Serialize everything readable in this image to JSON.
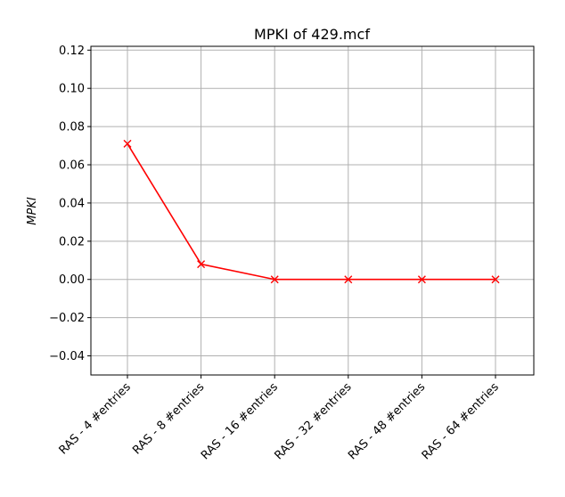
{
  "chart_data": {
    "type": "line",
    "title": "MPKI of 429.mcf",
    "xlabel": "",
    "ylabel": "MPKI",
    "categories": [
      "RAS - 4 #entries",
      "RAS - 8 #entries",
      "RAS - 16 #entries",
      "RAS - 32 #entries",
      "RAS - 48 #entries",
      "RAS - 64 #entries"
    ],
    "series": [
      {
        "values": [
          0.071,
          0.008,
          0.0,
          0.0,
          0.0,
          0.0
        ],
        "color": "#ff0000",
        "marker": "x"
      }
    ],
    "ylim": [
      -0.05,
      0.122
    ],
    "yticks": [
      -0.04,
      -0.02,
      0.0,
      0.02,
      0.04,
      0.06,
      0.08,
      0.1,
      0.12
    ],
    "ytick_labels": [
      "−0.04",
      "−0.02",
      "0.00",
      "0.02",
      "0.04",
      "0.06",
      "0.08",
      "0.10",
      "0.12"
    ],
    "grid": true,
    "legend": "none"
  }
}
